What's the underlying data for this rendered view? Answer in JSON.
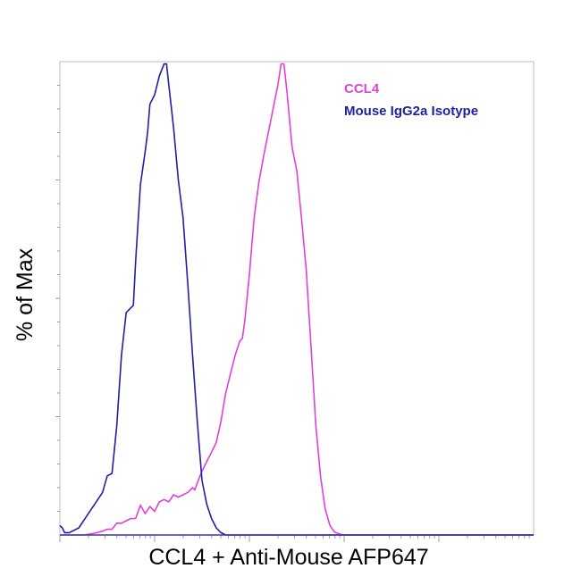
{
  "chart_data": {
    "type": "line",
    "title": "",
    "xlabel": "CCL4 + Anti-Mouse AFP647",
    "ylabel": "% of Max",
    "x_scale": "log",
    "tick_labels_shown": false,
    "ylim": [
      0,
      100
    ],
    "grid": false,
    "legend_position": "top-right",
    "series": [
      {
        "name": "CCL4",
        "color": "#e040d8",
        "points": [
          [
            0,
            0
          ],
          [
            2.5,
            0
          ],
          [
            5,
            0
          ],
          [
            7,
            0.3
          ],
          [
            9,
            0.8
          ],
          [
            10,
            1.2
          ],
          [
            11,
            1.2
          ],
          [
            12,
            2.5
          ],
          [
            13,
            2.5
          ],
          [
            14,
            3.0
          ],
          [
            15,
            3.5
          ],
          [
            16,
            3.5
          ],
          [
            17,
            6.3
          ],
          [
            18,
            4.5
          ],
          [
            19,
            6.0
          ],
          [
            20,
            5.0
          ],
          [
            21,
            7.0
          ],
          [
            22,
            7.5
          ],
          [
            23,
            7.0
          ],
          [
            24,
            8.5
          ],
          [
            25,
            8.0
          ],
          [
            26,
            8.5
          ],
          [
            27,
            9.0
          ],
          [
            28,
            10.0
          ],
          [
            28.5,
            9.5
          ],
          [
            29,
            11.0
          ],
          [
            30,
            13.5
          ],
          [
            31,
            15.5
          ],
          [
            32,
            17.5
          ],
          [
            33,
            19.5
          ],
          [
            34,
            24.0
          ],
          [
            35,
            30.0
          ],
          [
            36,
            34.0
          ],
          [
            37,
            38.0
          ],
          [
            38,
            41.0
          ],
          [
            38.5,
            41.5
          ],
          [
            39,
            45.0
          ],
          [
            40,
            55.0
          ],
          [
            41,
            67.0
          ],
          [
            42,
            74.5
          ],
          [
            43,
            80.0
          ],
          [
            44,
            85.0
          ],
          [
            45,
            90.0
          ],
          [
            46,
            95.0
          ],
          [
            46.7,
            99.5
          ],
          [
            47.3,
            99.5
          ],
          [
            48,
            93.0
          ],
          [
            49,
            82.0
          ],
          [
            50,
            77.0
          ],
          [
            51,
            67.0
          ],
          [
            52,
            56.0
          ],
          [
            53,
            40.0
          ],
          [
            54,
            23.5
          ],
          [
            55,
            12.5
          ],
          [
            56,
            5.5
          ],
          [
            57,
            2.0
          ],
          [
            58,
            0.6
          ],
          [
            59,
            0.2
          ],
          [
            60,
            0
          ],
          [
            70,
            0
          ],
          [
            80,
            0
          ],
          [
            90,
            0
          ],
          [
            100,
            0
          ]
        ]
      },
      {
        "name": "Mouse IgG2a Isotype",
        "color": "#1f1fa8",
        "points": [
          [
            0,
            2.0
          ],
          [
            0.5,
            1.5
          ],
          [
            1,
            0.5
          ],
          [
            2,
            0.5
          ],
          [
            3,
            1.0
          ],
          [
            4,
            1.5
          ],
          [
            5,
            3.0
          ],
          [
            6,
            4.5
          ],
          [
            7,
            6.0
          ],
          [
            8,
            7.5
          ],
          [
            9,
            9.0
          ],
          [
            10,
            12.5
          ],
          [
            11,
            13.0
          ],
          [
            12,
            23.0
          ],
          [
            13,
            38.0
          ],
          [
            14,
            47.0
          ],
          [
            15,
            48.0
          ],
          [
            15.5,
            48.5
          ],
          [
            16,
            58.0
          ],
          [
            17,
            74.0
          ],
          [
            18,
            81.0
          ],
          [
            18.5,
            85.0
          ],
          [
            19,
            91.0
          ],
          [
            20,
            93.0
          ],
          [
            21,
            97.0
          ],
          [
            22,
            99.5
          ],
          [
            22.5,
            99.5
          ],
          [
            23,
            95.0
          ],
          [
            24,
            86.0
          ],
          [
            25,
            75.0
          ],
          [
            26,
            67.0
          ],
          [
            27,
            53.0
          ],
          [
            28,
            38.0
          ],
          [
            29,
            24.0
          ],
          [
            30,
            11.5
          ],
          [
            31,
            6.5
          ],
          [
            32,
            3.5
          ],
          [
            33,
            1.5
          ],
          [
            34,
            0.5
          ],
          [
            35,
            0
          ],
          [
            40,
            0
          ],
          [
            60,
            0
          ],
          [
            80,
            0
          ],
          [
            100,
            0
          ]
        ]
      }
    ]
  }
}
